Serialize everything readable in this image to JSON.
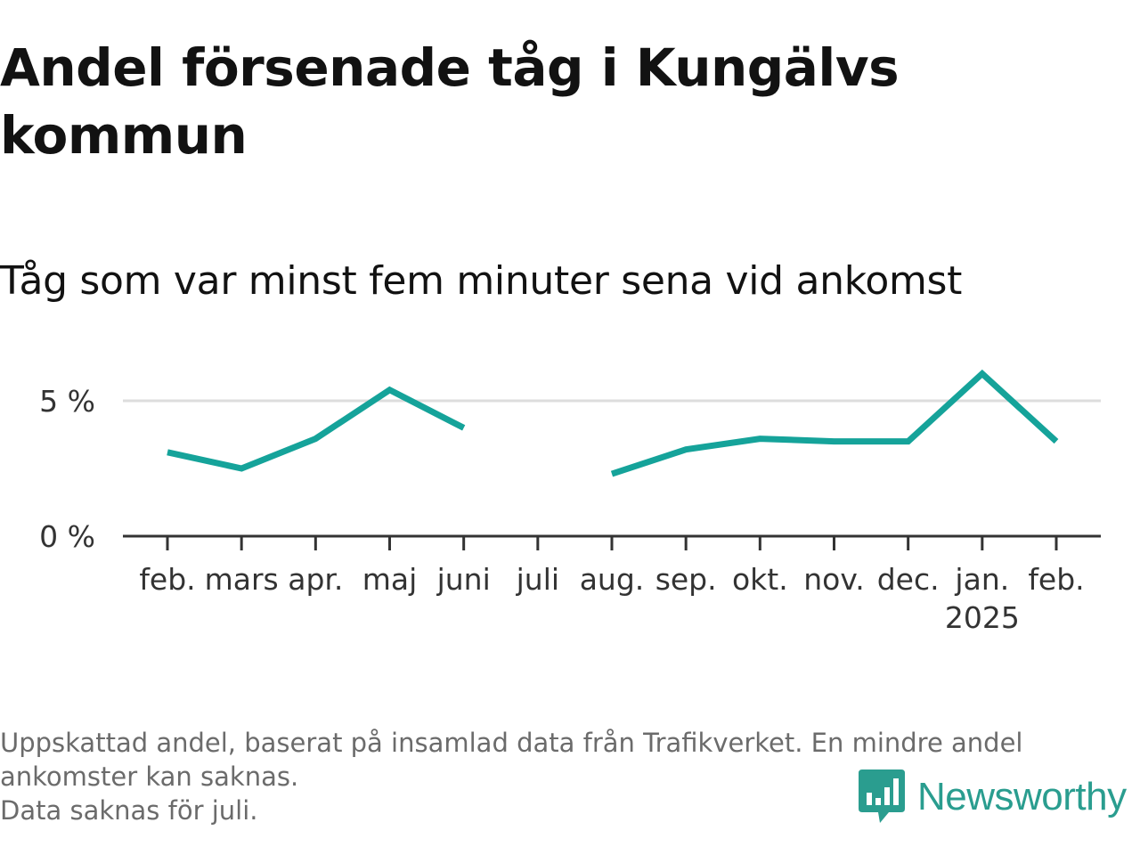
{
  "header": {
    "title": "Andel försenade tåg i Kungälvs kommun",
    "subtitle": "Tåg som var minst fem minuter sena vid ankomst"
  },
  "chart_data": {
    "type": "line",
    "categories": [
      "feb.",
      "mars",
      "apr.",
      "maj",
      "juni",
      "juli",
      "aug.",
      "sep.",
      "okt.",
      "nov.",
      "dec.",
      "jan.",
      "feb."
    ],
    "year_label": {
      "category_index": 11,
      "text": "2025"
    },
    "series": [
      {
        "values": [
          3.1,
          2.5,
          3.6,
          5.4,
          4.0,
          null,
          2.3,
          3.2,
          3.6,
          3.5,
          3.5,
          6.0,
          3.5
        ],
        "color": "#15a39a"
      }
    ],
    "yticks": [
      {
        "value": 0,
        "label": "0 %"
      },
      {
        "value": 5,
        "label": "5 %"
      }
    ],
    "ylim": [
      0,
      6.3
    ],
    "gridlines": true
  },
  "notes": [
    "Uppskattad andel, baserat på insamlad data från Trafikverket. En mindre andel ankomster kan saknas.",
    "Data saknas för juli."
  ],
  "brand": {
    "name": "Newsworthy",
    "color": "#2a9d8f",
    "icon": "bar-chart-bubble-icon"
  }
}
